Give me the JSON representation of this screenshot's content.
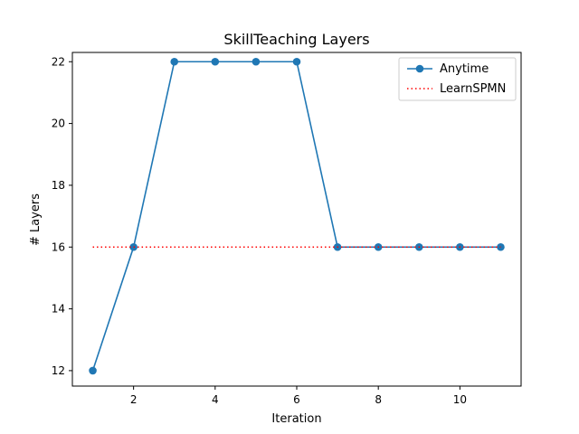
{
  "chart_data": {
    "type": "line",
    "title": "SkillTeaching Layers",
    "xlabel": "Iteration",
    "ylabel": "# Layers",
    "xlim": [
      0.5,
      11.5
    ],
    "ylim": [
      11.5,
      22.3
    ],
    "xticks": [
      2,
      4,
      6,
      8,
      10
    ],
    "yticks": [
      12,
      14,
      16,
      18,
      20,
      22
    ],
    "grid": false,
    "legend_position": "top-right",
    "series": [
      {
        "name": "Anytime",
        "style": "solid-with-markers",
        "color": "#1f77b4",
        "x": [
          1,
          2,
          3,
          4,
          5,
          6,
          7,
          8,
          9,
          10,
          11
        ],
        "y": [
          12,
          16,
          22,
          22,
          22,
          22,
          16,
          16,
          16,
          16,
          16
        ]
      },
      {
        "name": "LearnSPMN",
        "style": "dotted",
        "color": "#ff0000",
        "x": [
          1,
          11
        ],
        "y": [
          16,
          16
        ]
      }
    ]
  }
}
